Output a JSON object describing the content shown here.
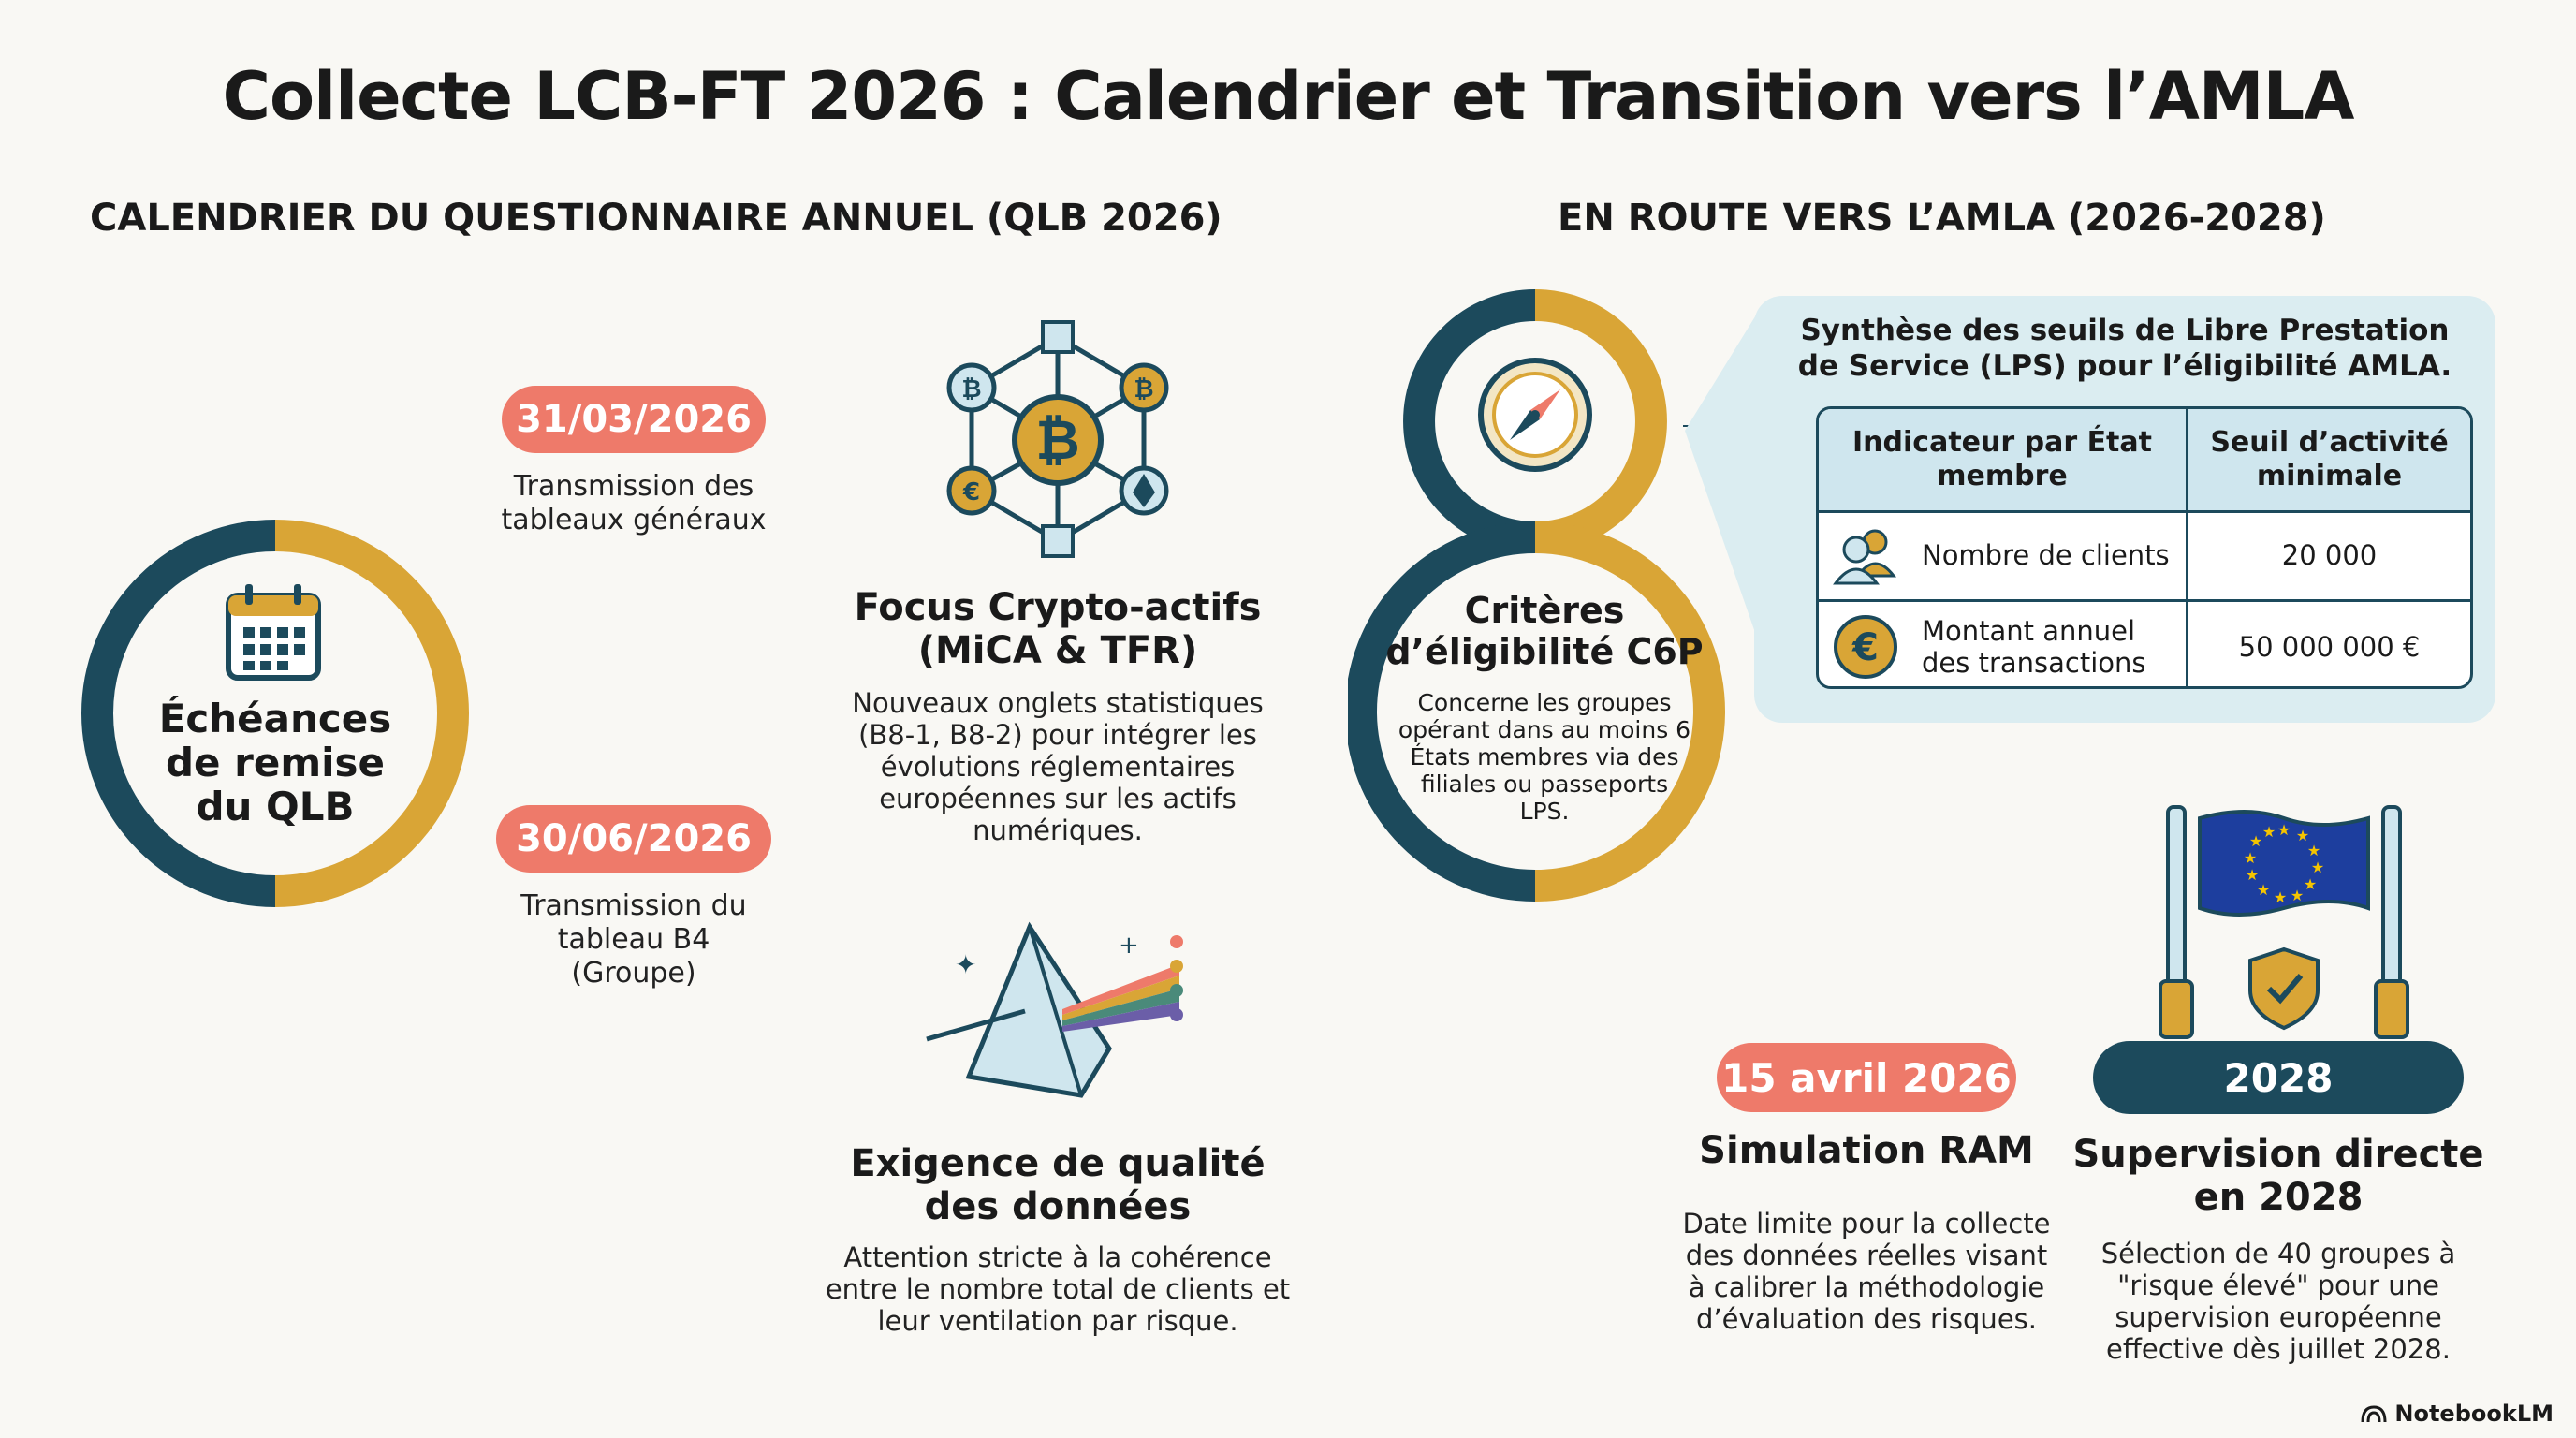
{
  "title": "Collecte LCB-FT 2026 : Calendrier et Transition vers l’AMLA",
  "left_section": {
    "title": "CALENDRIER DU QUESTIONNAIRE ANNUEL (QLB 2026)",
    "ring_label": "Échéances de remise du QLB",
    "deadline_1": {
      "date": "31/03/2026",
      "text": "Transmission des tableaux généraux"
    },
    "deadline_2": {
      "date": "30/06/2026",
      "text": "Transmission du tableau B4 (Groupe)"
    },
    "crypto": {
      "heading": "Focus Crypto-actifs (MiCA & TFR)",
      "text": "Nouveaux onglets statistiques (B8-1, B8-2) pour intégrer les évolutions réglementaires européennes sur les actifs numériques."
    },
    "quality": {
      "heading": "Exigence de qualité des données",
      "text": "Attention stricte à la cohérence entre le nombre total de clients et leur ventilation par risque."
    }
  },
  "right_section": {
    "title": "EN ROUTE VERS L’AMLA (2026-2028)",
    "criteria": {
      "heading": "Critères d’éligibilité C6P",
      "text": "Concerne les groupes opérant dans au moins 6 États membres via des filiales ou passeports LPS."
    },
    "lps_panel": {
      "title": "Synthèse des seuils de Libre Prestation de Service (LPS) pour l’éligibilité AMLA.",
      "headers": [
        "Indicateur par État membre",
        "Seuil d’activité minimale"
      ],
      "rows": [
        {
          "indicator": "Nombre de clients",
          "threshold": "20 000",
          "icon": "users-icon"
        },
        {
          "indicator": "Montant annuel des transactions",
          "threshold": "50 000 000 €",
          "icon": "euro-coin-icon"
        }
      ]
    },
    "ram": {
      "date": "15 avril 2026",
      "heading": "Simulation RAM",
      "text": "Date limite pour la collecte des données réelles visant à calibrer la méthodologie d’évaluation des risques."
    },
    "supervision": {
      "year": "2028",
      "heading": "Supervision directe en 2028",
      "text": "Sélection de 40 groupes à \"risque élevé\" pour une supervision européenne effective dès juillet 2028."
    }
  },
  "brand": "NotebookLM",
  "colors": {
    "navy": "#1c4a5c",
    "gold": "#d9a536",
    "salmon": "#ee7a6a",
    "panel": "#dbedf1"
  }
}
